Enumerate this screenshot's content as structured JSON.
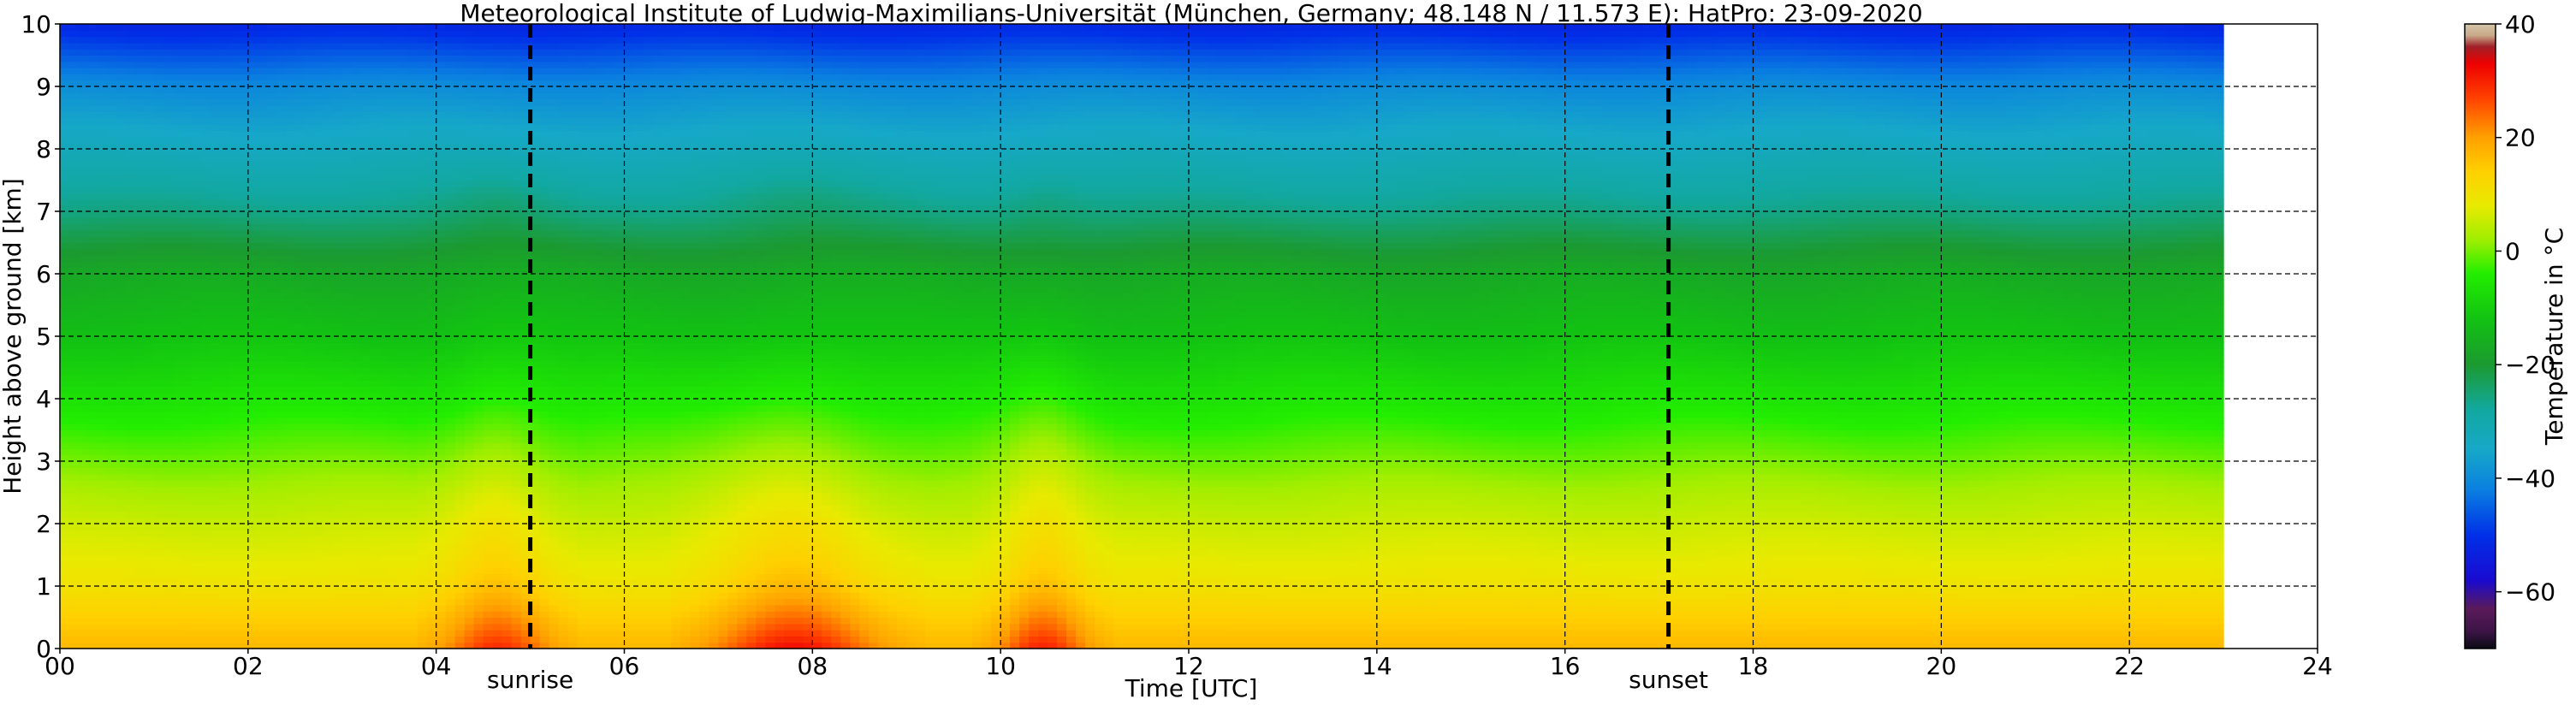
{
  "chart_data": {
    "type": "heatmap",
    "title": "Meteorological Institute of Ludwig-Maximilians-Universität (München, Germany; 48.148 N / 11.573 E):    HatPro: 23-09-2020",
    "xlabel": "Time [UTC]",
    "ylabel": "Height above ground [km]",
    "xlim": [
      0,
      24
    ],
    "ylim": [
      0,
      10
    ],
    "x_ticks": [
      "00",
      "02",
      "04",
      "06",
      "08",
      "10",
      "12",
      "14",
      "16",
      "18",
      "20",
      "22",
      "24"
    ],
    "y_ticks": [
      "0",
      "1",
      "2",
      "3",
      "4",
      "5",
      "6",
      "7",
      "8",
      "9",
      "10"
    ],
    "grid": true,
    "data_extent_hours": [
      0,
      23
    ],
    "sunrise": 5.0,
    "sunset": 17.1,
    "sunrise_label": "sunrise",
    "sunset_label": "sunset",
    "colorbar": {
      "label": "Temperature in °C",
      "range": [
        -70,
        40
      ],
      "ticks": [
        "40",
        "20",
        "0",
        "−20",
        "−40",
        "−60"
      ],
      "stops": [
        {
          "v": -70,
          "color": "#0a0a14"
        },
        {
          "v": -67,
          "color": "#3c1446"
        },
        {
          "v": -63,
          "color": "#5a1a5a"
        },
        {
          "v": -58,
          "color": "#1a0ad0"
        },
        {
          "v": -50,
          "color": "#0030e8"
        },
        {
          "v": -42,
          "color": "#0a80e0"
        },
        {
          "v": -35,
          "color": "#16a8c8"
        },
        {
          "v": -28,
          "color": "#12a8a0"
        },
        {
          "v": -20,
          "color": "#1b9a30"
        },
        {
          "v": -12,
          "color": "#12c212"
        },
        {
          "v": -4,
          "color": "#22ee00"
        },
        {
          "v": 2,
          "color": "#a0ee00"
        },
        {
          "v": 8,
          "color": "#e8ea00"
        },
        {
          "v": 14,
          "color": "#ffd000"
        },
        {
          "v": 20,
          "color": "#ffa000"
        },
        {
          "v": 27,
          "color": "#ff4000"
        },
        {
          "v": 33,
          "color": "#ee0000"
        },
        {
          "v": 36,
          "color": "#a02028"
        },
        {
          "v": 38,
          "color": "#c8aa88"
        },
        {
          "v": 40,
          "color": "#d4c6a8"
        }
      ]
    },
    "temperature_profile": {
      "heights_km": [
        0,
        0.5,
        1,
        1.5,
        2,
        2.5,
        3,
        3.5,
        4,
        5,
        6,
        6.6,
        7,
        8,
        9,
        9.5,
        10
      ],
      "base_celsius": [
        17,
        14,
        10,
        7.5,
        5.5,
        3,
        0,
        -3,
        -6,
        -12,
        -17,
        -22,
        -26,
        -33,
        -40,
        -46,
        -52
      ]
    },
    "warm_periods": [
      {
        "start": 4.0,
        "end": 5.3,
        "peak_celsius": 28
      },
      {
        "start": 6.8,
        "end": 8.8,
        "peak_celsius": 31
      },
      {
        "start": 9.9,
        "end": 11.0,
        "peak_celsius": 29
      }
    ]
  }
}
